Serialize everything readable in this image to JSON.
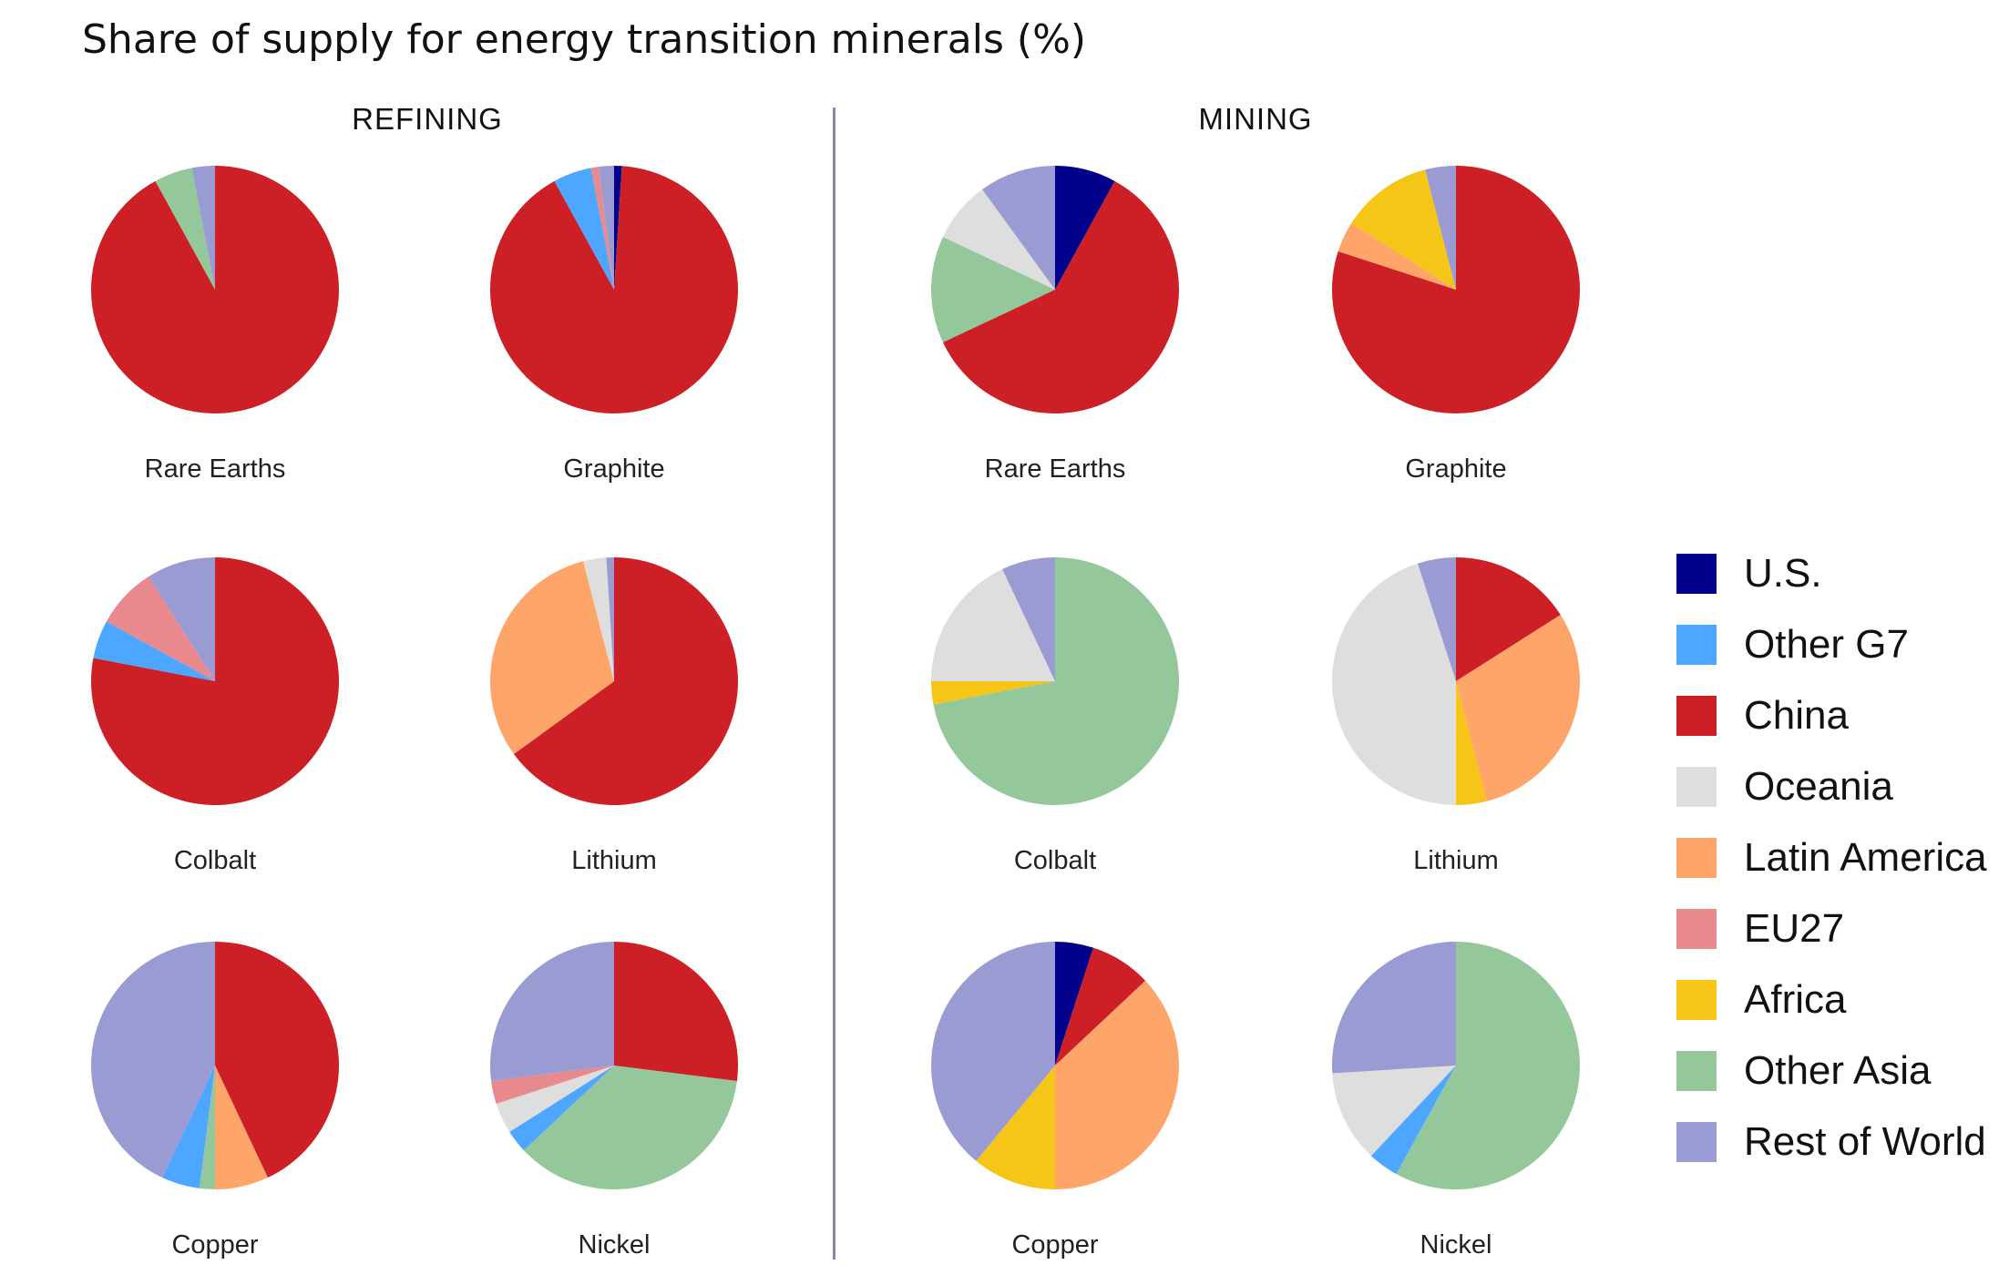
{
  "title": "Share of supply for energy transition minerals (%)",
  "sections": {
    "refining": "REFINING",
    "mining": "MINING"
  },
  "legend": [
    {
      "name": "U.S.",
      "color": "#00008b"
    },
    {
      "name": "Other G7",
      "color": "#4da6ff"
    },
    {
      "name": "China",
      "color": "#cc1f26"
    },
    {
      "name": "Oceania",
      "color": "#dedede"
    },
    {
      "name": "Latin America",
      "color": "#fea66a"
    },
    {
      "name": "EU27",
      "color": "#e8898e"
    },
    {
      "name": "Africa",
      "color": "#f5c518"
    },
    {
      "name": "Other Asia",
      "color": "#94c89a"
    },
    {
      "name": "Rest of World",
      "color": "#9b9bd3"
    }
  ],
  "chart_data": [
    {
      "type": "pie",
      "group": "REFINING",
      "title": "Rare Earths",
      "slices": [
        {
          "name": "China",
          "value": 92
        },
        {
          "name": "Other Asia",
          "value": 5
        },
        {
          "name": "Rest of World",
          "value": 3
        }
      ]
    },
    {
      "type": "pie",
      "group": "REFINING",
      "title": "Graphite",
      "slices": [
        {
          "name": "U.S.",
          "value": 1
        },
        {
          "name": "China",
          "value": 91
        },
        {
          "name": "Other G7",
          "value": 5
        },
        {
          "name": "EU27",
          "value": 1
        },
        {
          "name": "Rest of World",
          "value": 2
        }
      ]
    },
    {
      "type": "pie",
      "group": "REFINING",
      "title": "Colbalt",
      "slices": [
        {
          "name": "China",
          "value": 78
        },
        {
          "name": "Other G7",
          "value": 5
        },
        {
          "name": "EU27",
          "value": 8
        },
        {
          "name": "Rest of World",
          "value": 9
        }
      ]
    },
    {
      "type": "pie",
      "group": "REFINING",
      "title": "Lithium",
      "slices": [
        {
          "name": "China",
          "value": 65
        },
        {
          "name": "Latin America",
          "value": 31
        },
        {
          "name": "Oceania",
          "value": 3
        },
        {
          "name": "Rest of World",
          "value": 1
        }
      ]
    },
    {
      "type": "pie",
      "group": "REFINING",
      "title": "Copper",
      "slices": [
        {
          "name": "China",
          "value": 43
        },
        {
          "name": "Latin America",
          "value": 7
        },
        {
          "name": "Other Asia",
          "value": 2
        },
        {
          "name": "Other G7",
          "value": 5
        },
        {
          "name": "Rest of World",
          "value": 43
        }
      ]
    },
    {
      "type": "pie",
      "group": "REFINING",
      "title": "Nickel",
      "slices": [
        {
          "name": "China",
          "value": 27
        },
        {
          "name": "Other Asia",
          "value": 36
        },
        {
          "name": "Other G7",
          "value": 3
        },
        {
          "name": "Oceania",
          "value": 4
        },
        {
          "name": "EU27",
          "value": 3
        },
        {
          "name": "Rest of World",
          "value": 27
        }
      ]
    },
    {
      "type": "pie",
      "group": "MINING",
      "title": "Rare Earths",
      "slices": [
        {
          "name": "U.S.",
          "value": 8
        },
        {
          "name": "China",
          "value": 60
        },
        {
          "name": "Other Asia",
          "value": 14
        },
        {
          "name": "Oceania",
          "value": 8
        },
        {
          "name": "Rest of World",
          "value": 10
        }
      ]
    },
    {
      "type": "pie",
      "group": "MINING",
      "title": "Graphite",
      "slices": [
        {
          "name": "China",
          "value": 80
        },
        {
          "name": "Latin America",
          "value": 4
        },
        {
          "name": "Africa",
          "value": 12
        },
        {
          "name": "Rest of World",
          "value": 4
        }
      ]
    },
    {
      "type": "pie",
      "group": "MINING",
      "title": "Colbalt",
      "slices": [
        {
          "name": "Other Asia",
          "value": 72
        },
        {
          "name": "Africa",
          "value": 3
        },
        {
          "name": "Oceania",
          "value": 18
        },
        {
          "name": "Rest of World",
          "value": 7
        }
      ]
    },
    {
      "type": "pie",
      "group": "MINING",
      "title": "Lithium",
      "slices": [
        {
          "name": "China",
          "value": 16
        },
        {
          "name": "Latin America",
          "value": 30
        },
        {
          "name": "Africa",
          "value": 4
        },
        {
          "name": "Oceania",
          "value": 45
        },
        {
          "name": "Rest of World",
          "value": 5
        }
      ]
    },
    {
      "type": "pie",
      "group": "MINING",
      "title": "Copper",
      "slices": [
        {
          "name": "U.S.",
          "value": 5
        },
        {
          "name": "China",
          "value": 8
        },
        {
          "name": "Latin America",
          "value": 37
        },
        {
          "name": "Africa",
          "value": 11
        },
        {
          "name": "Rest of World",
          "value": 39
        }
      ]
    },
    {
      "type": "pie",
      "group": "MINING",
      "title": "Nickel",
      "slices": [
        {
          "name": "Other Asia",
          "value": 58
        },
        {
          "name": "Other G7",
          "value": 4
        },
        {
          "name": "Oceania",
          "value": 12
        },
        {
          "name": "Rest of World",
          "value": 26
        }
      ]
    }
  ]
}
